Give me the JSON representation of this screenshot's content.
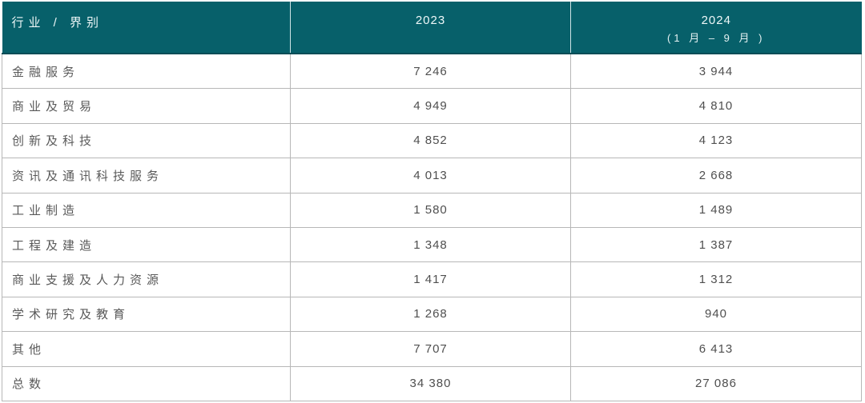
{
  "chart_data": {
    "type": "table",
    "title": "",
    "columns": [
      "行业 / 界别",
      "2023",
      "2024 (1 月 – 9 月)"
    ],
    "categories": [
      "金融服务",
      "商业及贸易",
      "创新及科技",
      "资讯及通讯科技服务",
      "工业制造",
      "工程及建造",
      "商业支援及人力资源",
      "学术研究及教育",
      "其他",
      "总数"
    ],
    "series": [
      {
        "name": "2023",
        "values": [
          7246,
          4949,
          4852,
          4013,
          1580,
          1348,
          1417,
          1268,
          7707,
          34380
        ]
      },
      {
        "name": "2024 (1 月 – 9 月)",
        "values": [
          3944,
          4810,
          4123,
          2668,
          1489,
          1387,
          1312,
          940,
          6413,
          27086
        ]
      }
    ]
  },
  "table": {
    "columns": [
      {
        "label": "行业 / 界别"
      },
      {
        "label": "2023"
      },
      {
        "label": "2024",
        "sublabel": "(1 月  –  9 月 )"
      }
    ],
    "rows": [
      {
        "label": "金融服务",
        "y2023": "7 246",
        "y2024": "3 944"
      },
      {
        "label": "商业及贸易",
        "y2023": "4 949",
        "y2024": "4 810"
      },
      {
        "label": "创新及科技",
        "y2023": "4 852",
        "y2024": "4 123"
      },
      {
        "label": "资讯及通讯科技服务",
        "y2023": "4 013",
        "y2024": "2 668"
      },
      {
        "label": "工业制造",
        "y2023": "1 580",
        "y2024": "1 489"
      },
      {
        "label": "工程及建造",
        "y2023": "1 348",
        "y2024": "1 387"
      },
      {
        "label": "商业支援及人力资源",
        "y2023": "1 417",
        "y2024": "1 312"
      },
      {
        "label": "学术研究及教育",
        "y2023": "1 268",
        "y2024": "940"
      },
      {
        "label": "其他",
        "y2023": "7 707",
        "y2024": "6 413"
      },
      {
        "label": "总数",
        "y2023": "34 380",
        "y2024": "27 086"
      }
    ]
  },
  "colors": {
    "header_bg": "#07606a",
    "header_text": "#eef7f8",
    "header_divider": "#cfe4e6",
    "header_bottom_border": "#0a4d56",
    "grid_border": "#b7b7b7",
    "label_text": "#595959",
    "value_text": "#4f4f4f",
    "page_bg": "#ffffff"
  }
}
